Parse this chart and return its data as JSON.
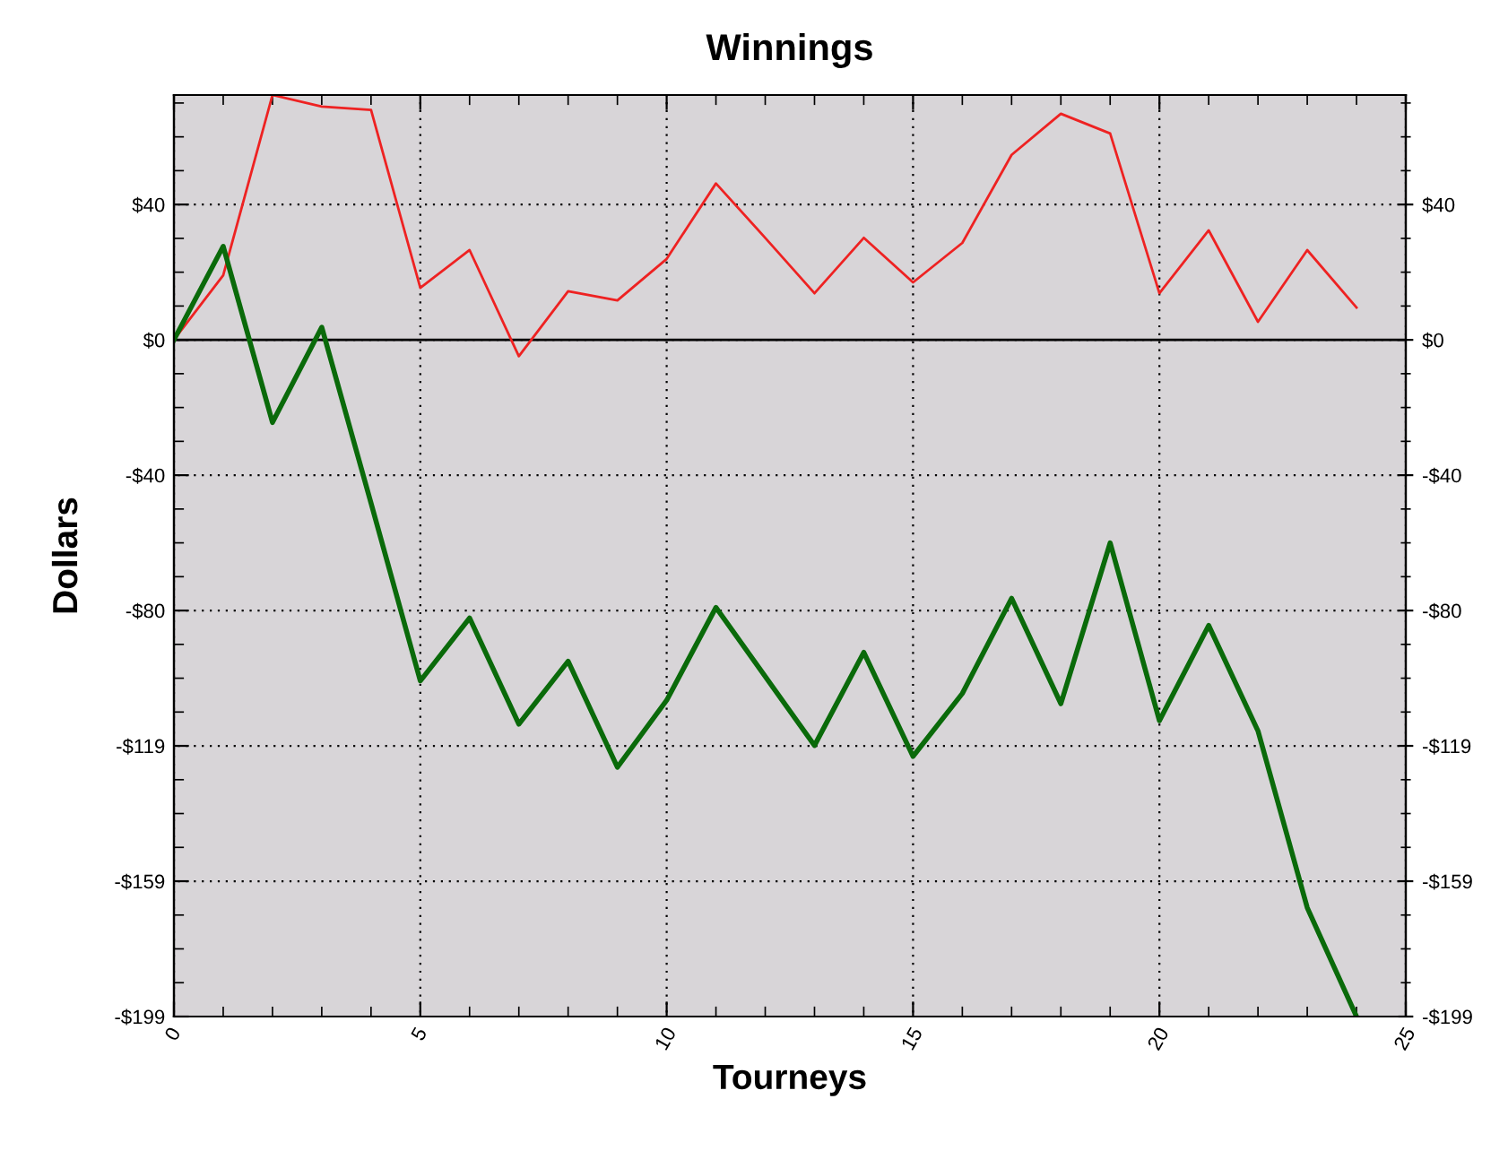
{
  "chart_data": {
    "type": "line",
    "title": "Winnings",
    "xlabel": "Tourneys",
    "ylabel": "Dollars",
    "x": [
      0,
      1,
      2,
      3,
      4,
      5,
      6,
      7,
      8,
      9,
      10,
      11,
      12,
      13,
      14,
      15,
      16,
      17,
      18,
      19,
      20,
      21,
      22,
      23,
      24
    ],
    "series": [
      {
        "color": "#ee2222",
        "values": [
          0,
          19,
          72,
          68.6,
          67.6,
          15.3,
          26.4,
          -4.8,
          14.3,
          11.6,
          23.8,
          46,
          30,
          13.7,
          30,
          16.9,
          28.5,
          54.4,
          66.5,
          60.7,
          13.7,
          32.2,
          5.3,
          26.4,
          9.5
        ]
      },
      {
        "color": "#0a6a0a",
        "values": [
          0,
          27.5,
          -24.3,
          3.7,
          -48,
          -100.3,
          -81.8,
          -113,
          -94.5,
          -125.7,
          -106,
          -78.7,
          -99,
          -119.3,
          -91.9,
          -122.5,
          -104,
          -76,
          -107,
          -59.7,
          -112,
          -84,
          -115,
          -167,
          -199
        ]
      }
    ],
    "xlim": [
      0,
      25
    ],
    "xticks": [
      0,
      5,
      10,
      15,
      20,
      25
    ],
    "ylim": [
      -199,
      72
    ],
    "yticks": [
      {
        "value": -199,
        "label": "-$199"
      },
      {
        "value": -159.2,
        "label": "-$159"
      },
      {
        "value": -119.4,
        "label": "-$119"
      },
      {
        "value": -79.6,
        "label": "-$80"
      },
      {
        "value": -39.8,
        "label": "-$40"
      },
      {
        "value": 0,
        "label": "$0"
      },
      {
        "value": 39.8,
        "label": "$40"
      }
    ],
    "y2lim": [
      -199,
      72
    ],
    "y2ticks": [
      {
        "value": -199,
        "label": "-$199"
      },
      {
        "value": -159.2,
        "label": "-$159"
      },
      {
        "value": -119.4,
        "label": "-$119"
      },
      {
        "value": -79.6,
        "label": "-$80"
      },
      {
        "value": -39.8,
        "label": "-$40"
      },
      {
        "value": 0,
        "label": "$0"
      },
      {
        "value": 39.8,
        "label": "$40"
      }
    ],
    "ref_lines": [
      {
        "axis": "y",
        "value": 0,
        "color": "#000000",
        "line_style": "solid"
      }
    ],
    "grid": true,
    "legend": false,
    "marker": "none",
    "line_style": "solid"
  }
}
